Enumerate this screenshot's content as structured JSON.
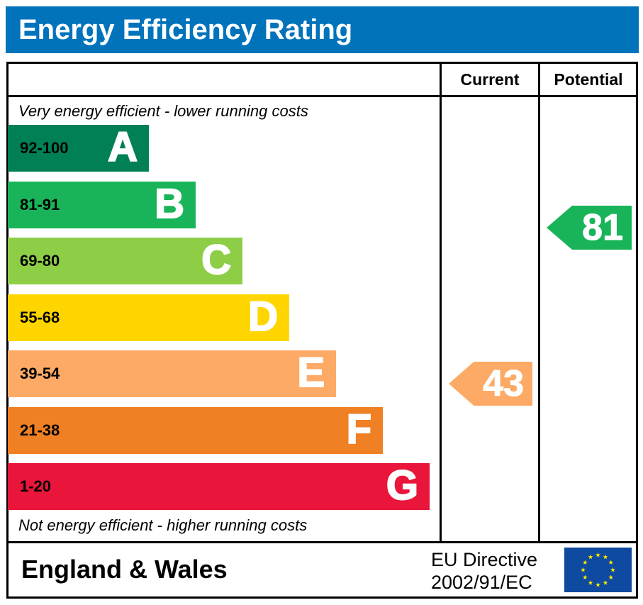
{
  "title": "Energy Efficiency Rating",
  "columns": {
    "current": "Current",
    "potential": "Potential"
  },
  "notes": {
    "top": "Very energy efficient - lower running costs",
    "bottom": "Not energy efficient - higher running costs"
  },
  "footer": {
    "region": "England & Wales",
    "directive_line1": "EU Directive",
    "directive_line2": "2002/91/EC"
  },
  "chart_data": {
    "type": "bar",
    "title": "Energy Efficiency Rating",
    "bands": [
      {
        "letter": "A",
        "range": "92-100",
        "color": "#008054"
      },
      {
        "letter": "B",
        "range": "81-91",
        "color": "#19b459"
      },
      {
        "letter": "C",
        "range": "69-80",
        "color": "#8dce46"
      },
      {
        "letter": "D",
        "range": "55-68",
        "color": "#ffd500"
      },
      {
        "letter": "E",
        "range": "39-54",
        "color": "#fcaa65"
      },
      {
        "letter": "F",
        "range": "21-38",
        "color": "#ef8023"
      },
      {
        "letter": "G",
        "range": "1-20",
        "color": "#e9153b"
      }
    ],
    "current": {
      "value": 43,
      "band": "E",
      "color": "#fcaa65"
    },
    "potential": {
      "value": 81,
      "band": "B",
      "color": "#19b459"
    }
  }
}
